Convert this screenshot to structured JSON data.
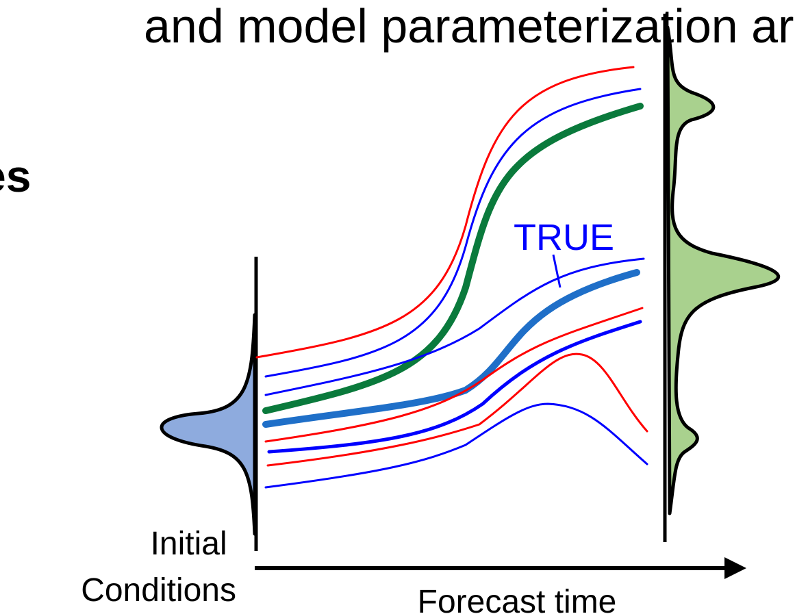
{
  "header_fragment": "and model parameterization ar",
  "left_fragment": "es",
  "true_label": "TRUE",
  "initial_label_line1": "Initial",
  "initial_label_line2": "Conditions",
  "axis_label": "Forecast time",
  "colors": {
    "perturbed_member_red": "#ff0000",
    "perturbed_member_blue": "#0000ff",
    "true_trajectory": "#1f6fc8",
    "forecast_member_green": "#0a7a3c",
    "initial_pdf_fill": "#8eabde",
    "final_pdf_fill": "#a9d18e",
    "outline": "#000000"
  },
  "icons": {
    "axis_arrow": "arrow-right-icon"
  }
}
